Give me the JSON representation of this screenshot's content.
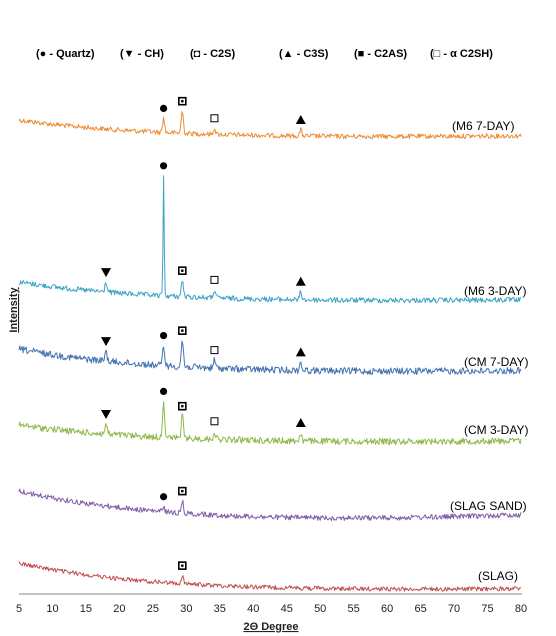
{
  "chart_data": {
    "type": "line",
    "xlabel": "2Θ Degree",
    "ylabel": "Intensity",
    "xlim": [
      5,
      80
    ],
    "xticks": [
      5,
      10,
      15,
      20,
      25,
      30,
      35,
      40,
      45,
      50,
      55,
      60,
      65,
      70,
      75,
      80
    ],
    "legend": [
      {
        "marker": "●",
        "label": "(● - Quartz)"
      },
      {
        "marker": "▼",
        "label": "(▼ - CH)"
      },
      {
        "marker": "◘",
        "label": "(◘ - C2S)"
      },
      {
        "marker": "▲",
        "label": "(▲ - C3S)"
      },
      {
        "marker": "■",
        "label": "(■ - C2AS)"
      },
      {
        "marker": "□",
        "label": "(□ - α C2SH)"
      }
    ],
    "series": [
      {
        "name": "(M6 7-DAY)",
        "color": "#ED8B32",
        "peaks": [
          [
            26.6,
            "circle"
          ],
          [
            29.4,
            "c2s"
          ],
          [
            34.2,
            "open-square"
          ],
          [
            47.1,
            "triangle-up"
          ]
        ]
      },
      {
        "name": "(M6 3-DAY)",
        "color": "#3BA3C4",
        "peaks": [
          [
            18.0,
            "triangle-down"
          ],
          [
            26.6,
            "circle"
          ],
          [
            29.4,
            "c2s"
          ],
          [
            34.2,
            "open-square"
          ],
          [
            47.1,
            "triangle-up"
          ]
        ]
      },
      {
        "name": "(CM 7-DAY)",
        "color": "#4472B0",
        "peaks": [
          [
            18.0,
            "triangle-down"
          ],
          [
            26.6,
            "circle"
          ],
          [
            29.4,
            "c2s"
          ],
          [
            34.2,
            "open-square"
          ],
          [
            47.1,
            "triangle-up"
          ]
        ]
      },
      {
        "name": "(CM 3-DAY)",
        "color": "#8FB84B",
        "peaks": [
          [
            18.0,
            "triangle-down"
          ],
          [
            26.6,
            "circle"
          ],
          [
            29.4,
            "c2s"
          ],
          [
            34.2,
            "open-square"
          ],
          [
            47.1,
            "triangle-up"
          ]
        ]
      },
      {
        "name": "(SLAG SAND)",
        "color": "#7E5FA8",
        "peaks": [
          [
            26.6,
            "circle"
          ],
          [
            29.4,
            "c2s"
          ]
        ]
      },
      {
        "name": "(SLAG)",
        "color": "#C0504D",
        "peaks": [
          [
            29.4,
            "c2s"
          ]
        ]
      }
    ]
  }
}
